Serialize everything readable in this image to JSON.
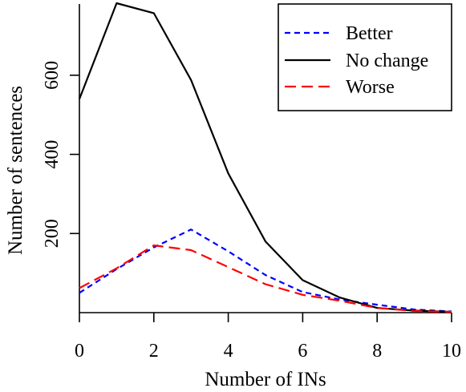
{
  "chart_data": {
    "type": "line",
    "title": "",
    "xlabel": "Number of INs",
    "ylabel": "Number of sentences",
    "xlim": [
      0,
      10
    ],
    "ylim": [
      0,
      780
    ],
    "x_ticks": [
      0,
      2,
      4,
      6,
      8,
      10
    ],
    "y_ticks": [
      200,
      400,
      600
    ],
    "x": [
      0,
      1,
      2,
      3,
      4,
      5,
      6,
      7,
      8,
      9,
      10
    ],
    "grid": false,
    "legend_position": "top-right",
    "series": [
      {
        "name": "Better",
        "color": "#0000ff",
        "dash": "dashed-short",
        "values": [
          50,
          110,
          165,
          210,
          155,
          95,
          52,
          33,
          20,
          8,
          3
        ]
      },
      {
        "name": "No change",
        "color": "#000000",
        "dash": "solid",
        "values": [
          540,
          782,
          757,
          588,
          352,
          180,
          82,
          38,
          12,
          5,
          2
        ]
      },
      {
        "name": "Worse",
        "color": "#ff0000",
        "dash": "dashed-long",
        "values": [
          62,
          112,
          170,
          158,
          115,
          72,
          45,
          30,
          12,
          4,
          2
        ]
      }
    ]
  }
}
